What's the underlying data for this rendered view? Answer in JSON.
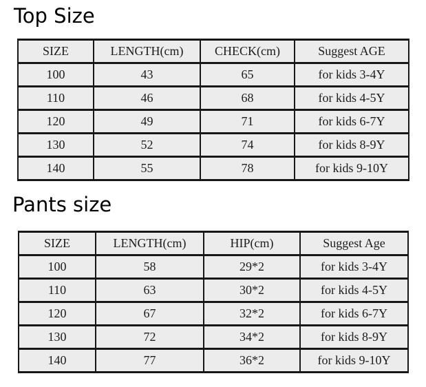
{
  "page": {
    "background": "#ffffff"
  },
  "colors": {
    "cell_background": "#ececec",
    "table_border": "#171717",
    "text": "#1c1c1c",
    "title_text": "#000000"
  },
  "tables": [
    {
      "title": "Top Size",
      "headers": [
        "SIZE",
        "LENGTH(cm)",
        "CHECK(cm)",
        "Suggest AGE"
      ],
      "rows": [
        [
          "100",
          "43",
          "65",
          "for kids 3-4Y"
        ],
        [
          "110",
          "46",
          "68",
          "for kids 4-5Y"
        ],
        [
          "120",
          "49",
          "71",
          "for kids 6-7Y"
        ],
        [
          "130",
          "52",
          "74",
          "for kids 8-9Y"
        ],
        [
          "140",
          "55",
          "78",
          "for kids 9-10Y"
        ]
      ]
    },
    {
      "title": "Pants size",
      "headers": [
        "SIZE",
        "LENGTH(cm)",
        "HIP(cm)",
        "Suggest Age"
      ],
      "rows": [
        [
          "100",
          "58",
          "29*2",
          "for kids 3-4Y"
        ],
        [
          "110",
          "63",
          "30*2",
          "for kids 4-5Y"
        ],
        [
          "120",
          "67",
          "32*2",
          "for kids 6-7Y"
        ],
        [
          "130",
          "72",
          "34*2",
          "for kids 8-9Y"
        ],
        [
          "140",
          "77",
          "36*2",
          "for kids 9-10Y"
        ]
      ]
    }
  ]
}
